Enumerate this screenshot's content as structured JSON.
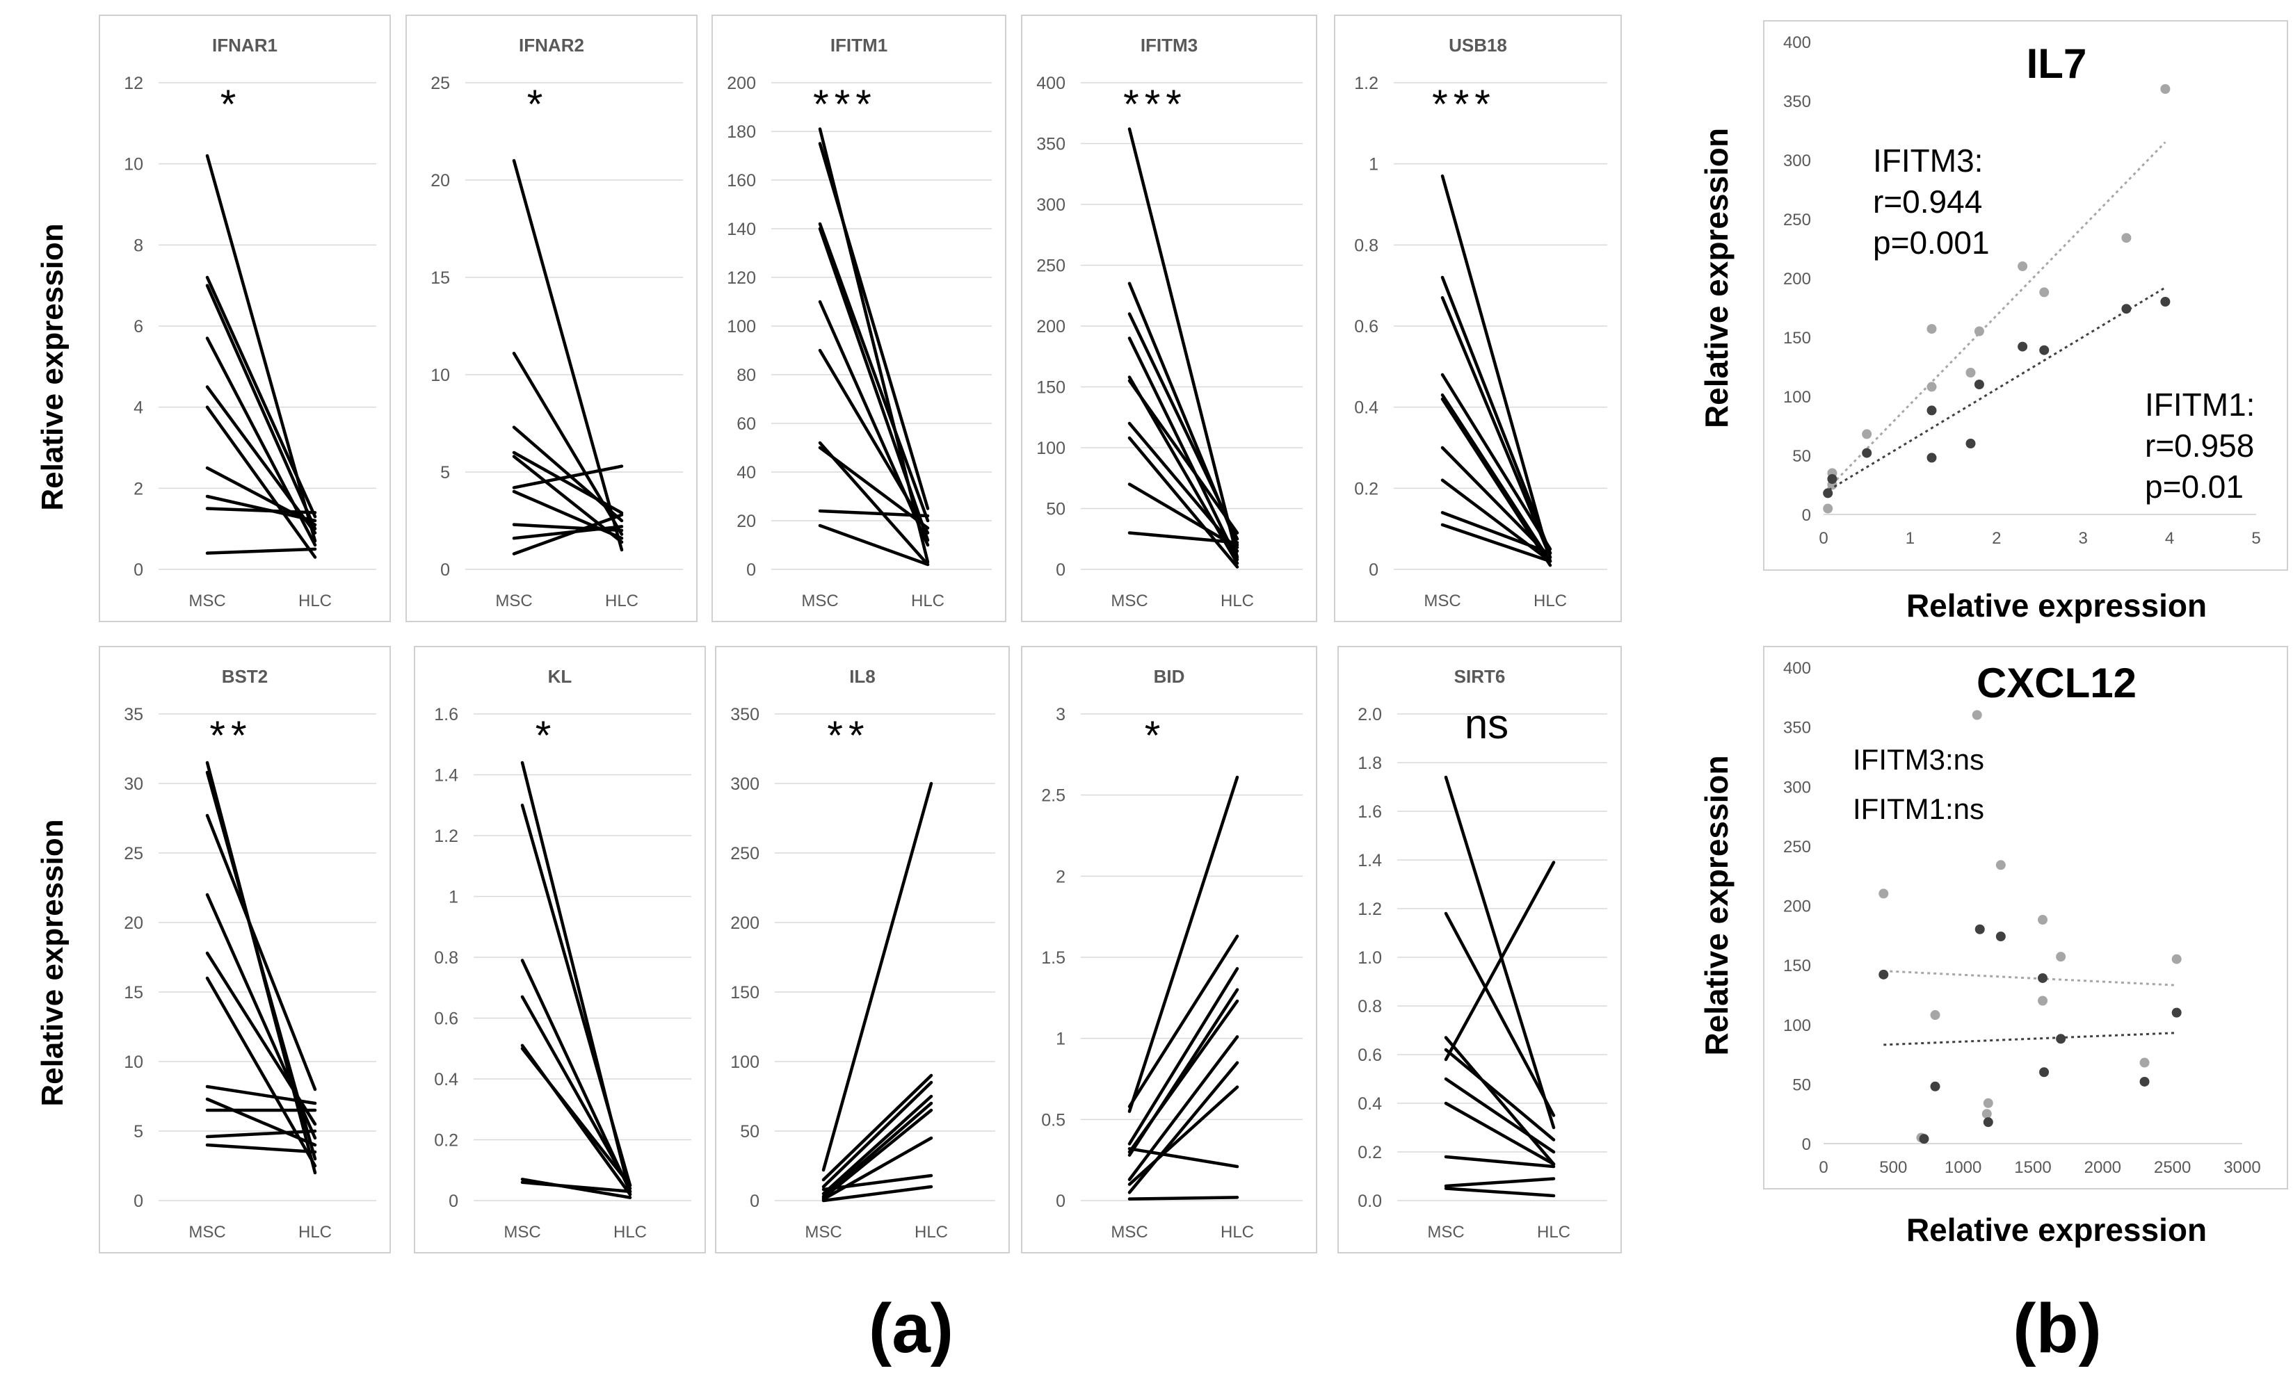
{
  "figure": {
    "ylabel_a": "Relative expression",
    "panel_a_label": "(a)",
    "panel_b_label": "(b)",
    "line_color": "#000000",
    "grid_color": "#d9d9d9",
    "frame_color": "#d0d0d0",
    "tick_color": "#595959",
    "gene_title_color": "#595959",
    "series_light_color": "#a6a6a6",
    "series_dark_color": "#404040"
  },
  "chart_data": [
    {
      "type": "line",
      "title": "IFNAR1",
      "significance": "*",
      "categories": [
        "MSC",
        "HLC"
      ],
      "ylim": [
        0,
        12
      ],
      "yticks": [
        "0",
        "2",
        "4",
        "6",
        "8",
        "10",
        "12"
      ],
      "pairs": [
        [
          10.2,
          0.7
        ],
        [
          7.2,
          1.3
        ],
        [
          7.0,
          1.0
        ],
        [
          5.7,
          0.6
        ],
        [
          4.5,
          0.9
        ],
        [
          4.0,
          0.3
        ],
        [
          2.5,
          1.1
        ],
        [
          1.8,
          1.2
        ],
        [
          1.5,
          1.4
        ],
        [
          0.4,
          0.5
        ]
      ]
    },
    {
      "type": "line",
      "title": "IFNAR2",
      "significance": "*",
      "categories": [
        "MSC",
        "HLC"
      ],
      "ylim": [
        0,
        25
      ],
      "yticks": [
        "0",
        "5",
        "10",
        "15",
        "20",
        "25"
      ],
      "pairs": [
        [
          21.0,
          1.0
        ],
        [
          11.1,
          1.8
        ],
        [
          7.3,
          2.5
        ],
        [
          6.0,
          2.9
        ],
        [
          5.8,
          1.4
        ],
        [
          4.2,
          5.3
        ],
        [
          4.0,
          1.6
        ],
        [
          2.3,
          2.0
        ],
        [
          1.6,
          2.2
        ],
        [
          0.8,
          2.8
        ]
      ]
    },
    {
      "type": "line",
      "title": "IFITM1",
      "significance": "***",
      "categories": [
        "MSC",
        "HLC"
      ],
      "ylim": [
        0,
        200
      ],
      "yticks": [
        "0",
        "20",
        "40",
        "60",
        "80",
        "100",
        "120",
        "140",
        "160",
        "180",
        "200"
      ],
      "pairs": [
        [
          181,
          3
        ],
        [
          175,
          25
        ],
        [
          142,
          20
        ],
        [
          140,
          12
        ],
        [
          110,
          10
        ],
        [
          90,
          15
        ],
        [
          52,
          2
        ],
        [
          50,
          17
        ],
        [
          24,
          22
        ],
        [
          18,
          2
        ]
      ]
    },
    {
      "type": "line",
      "title": "IFITM3",
      "significance": "***",
      "categories": [
        "MSC",
        "HLC"
      ],
      "ylim": [
        0,
        400
      ],
      "yticks": [
        "0",
        "50",
        "100",
        "150",
        "200",
        "250",
        "300",
        "350",
        "400"
      ],
      "pairs": [
        [
          362,
          10
        ],
        [
          235,
          20
        ],
        [
          210,
          25
        ],
        [
          190,
          8
        ],
        [
          158,
          5
        ],
        [
          155,
          30
        ],
        [
          120,
          15
        ],
        [
          108,
          2
        ],
        [
          70,
          18
        ],
        [
          30,
          22
        ]
      ]
    },
    {
      "type": "line",
      "title": "USB18",
      "significance": "***",
      "categories": [
        "MSC",
        "HLC"
      ],
      "ylim": [
        0,
        1.2
      ],
      "yticks": [
        "0",
        "0.2",
        "0.4",
        "0.6",
        "0.8",
        "1",
        "1.2"
      ],
      "pairs": [
        [
          0.97,
          0.02
        ],
        [
          0.72,
          0.04
        ],
        [
          0.67,
          0.03
        ],
        [
          0.48,
          0.05
        ],
        [
          0.43,
          0.02
        ],
        [
          0.42,
          0.01
        ],
        [
          0.3,
          0.03
        ],
        [
          0.22,
          0.02
        ],
        [
          0.14,
          0.04
        ],
        [
          0.11,
          0.02
        ]
      ]
    },
    {
      "type": "line",
      "title": "BST2",
      "significance": "**",
      "categories": [
        "MSC",
        "HLC"
      ],
      "ylim": [
        0,
        35
      ],
      "yticks": [
        "0",
        "5",
        "10",
        "15",
        "20",
        "25",
        "30",
        "35"
      ],
      "pairs": [
        [
          31.5,
          2.0
        ],
        [
          30.8,
          3.0
        ],
        [
          27.7,
          8.0
        ],
        [
          22.0,
          4.5
        ],
        [
          17.8,
          5.5
        ],
        [
          16.0,
          2.5
        ],
        [
          8.2,
          7.0
        ],
        [
          7.3,
          4.0
        ],
        [
          6.5,
          6.5
        ],
        [
          4.6,
          5.0
        ],
        [
          4.0,
          3.5
        ]
      ]
    },
    {
      "type": "line",
      "title": "KL",
      "significance": "*",
      "categories": [
        "MSC",
        "HLC"
      ],
      "ylim": [
        0,
        1.6
      ],
      "yticks": [
        "0",
        "0.2",
        "0.4",
        "0.6",
        "0.8",
        "1",
        "1.2",
        "1.4",
        "1.6"
      ],
      "pairs": [
        [
          1.44,
          0.02
        ],
        [
          1.3,
          0.05
        ],
        [
          0.79,
          0.03
        ],
        [
          0.67,
          0.04
        ],
        [
          0.51,
          0.02
        ],
        [
          0.5,
          0.05
        ],
        [
          0.07,
          0.01
        ],
        [
          0.06,
          0.03
        ]
      ]
    },
    {
      "type": "line",
      "title": "IL8",
      "significance": "**",
      "categories": [
        "MSC",
        "HLC"
      ],
      "ylim": [
        0,
        350
      ],
      "yticks": [
        "0",
        "50",
        "100",
        "150",
        "200",
        "250",
        "300",
        "350"
      ],
      "pairs": [
        [
          22,
          300
        ],
        [
          15,
          90
        ],
        [
          10,
          85
        ],
        [
          5,
          75
        ],
        [
          3,
          70
        ],
        [
          2,
          65
        ],
        [
          1,
          45
        ],
        [
          8,
          18
        ],
        [
          0,
          10
        ]
      ]
    },
    {
      "type": "line",
      "title": "BID",
      "significance": "*",
      "categories": [
        "MSC",
        "HLC"
      ],
      "ylim": [
        0,
        3
      ],
      "yticks": [
        "0",
        "0.5",
        "1",
        "1.5",
        "2",
        "2.5",
        "3"
      ],
      "pairs": [
        [
          0.55,
          2.61
        ],
        [
          0.58,
          1.63
        ],
        [
          0.35,
          1.43
        ],
        [
          0.28,
          1.3
        ],
        [
          0.3,
          1.23
        ],
        [
          0.13,
          1.01
        ],
        [
          0.05,
          0.85
        ],
        [
          0.1,
          0.7
        ],
        [
          0.32,
          0.21
        ],
        [
          0.01,
          0.02
        ]
      ]
    },
    {
      "type": "line",
      "title": "SIRT6",
      "significance": "ns",
      "categories": [
        "MSC",
        "HLC"
      ],
      "ylim": [
        0,
        2
      ],
      "yticks": [
        "0.0",
        "0.2",
        "0.4",
        "0.6",
        "0.8",
        "1.0",
        "1.2",
        "1.4",
        "1.6",
        "1.8",
        "2.0"
      ],
      "pairs": [
        [
          1.74,
          0.3
        ],
        [
          1.18,
          0.35
        ],
        [
          0.67,
          0.15
        ],
        [
          0.62,
          0.25
        ],
        [
          0.58,
          1.39
        ],
        [
          0.5,
          0.2
        ],
        [
          0.4,
          0.15
        ],
        [
          0.18,
          0.14
        ],
        [
          0.06,
          0.09
        ],
        [
          0.05,
          0.02
        ]
      ]
    },
    {
      "type": "scatter",
      "title": "IL7",
      "xlabel": "Relative expression",
      "ylabel": "Relative expression",
      "xlim": [
        0,
        5
      ],
      "ylim": [
        0,
        400
      ],
      "xticks": [
        "0",
        "1",
        "2",
        "3",
        "4",
        "5"
      ],
      "yticks": [
        "0",
        "50",
        "100",
        "150",
        "200",
        "250",
        "300",
        "350",
        "400"
      ],
      "series": [
        {
          "name": "IFITM3",
          "color": "light",
          "points": [
            [
              0.05,
              5
            ],
            [
              0.1,
              35
            ],
            [
              0.1,
              25
            ],
            [
              0.5,
              68
            ],
            [
              1.25,
              157
            ],
            [
              1.25,
              108
            ],
            [
              1.7,
              120
            ],
            [
              1.8,
              155
            ],
            [
              2.3,
              210
            ],
            [
              2.55,
              188
            ],
            [
              3.5,
              234
            ],
            [
              3.95,
              360
            ]
          ],
          "trend": [
            [
              0,
              18
            ],
            [
              3.95,
              315
            ]
          ]
        },
        {
          "name": "IFITM1",
          "color": "dark",
          "points": [
            [
              0.05,
              18
            ],
            [
              0.1,
              30
            ],
            [
              0.5,
              52
            ],
            [
              1.25,
              88
            ],
            [
              1.25,
              48
            ],
            [
              1.7,
              60
            ],
            [
              1.8,
              110
            ],
            [
              2.3,
              142
            ],
            [
              2.55,
              139
            ],
            [
              3.5,
              174
            ],
            [
              3.95,
              180
            ]
          ],
          "trend": [
            [
              0,
              18
            ],
            [
              3.95,
              192
            ]
          ]
        }
      ],
      "annotations": [
        {
          "lines": [
            "IFITM3:",
            "r=0.944",
            "p=0.001"
          ],
          "placement": "upper-left"
        },
        {
          "lines": [
            "IFITM1:",
            "r=0.958",
            "p=0.01"
          ],
          "placement": "lower-right"
        }
      ]
    },
    {
      "type": "scatter",
      "title": "CXCL12",
      "xlabel": "Relative expression",
      "ylabel": "Relative expression",
      "xlim": [
        0,
        3000
      ],
      "ylim": [
        0,
        400
      ],
      "xticks": [
        "0",
        "500",
        "1000",
        "1500",
        "2000",
        "2500",
        "3000"
      ],
      "yticks": [
        "0",
        "50",
        "100",
        "150",
        "200",
        "250",
        "300",
        "350",
        "400"
      ],
      "series": [
        {
          "name": "IFITM3",
          "color": "light",
          "points": [
            [
              1100,
              360
            ],
            [
              1270,
              234
            ],
            [
              430,
              210
            ],
            [
              1570,
              188
            ],
            [
              1700,
              157
            ],
            [
              2530,
              155
            ],
            [
              1570,
              120
            ],
            [
              800,
              108
            ],
            [
              2300,
              68
            ],
            [
              1180,
              34
            ],
            [
              1170,
              25
            ],
            [
              700,
              5
            ]
          ],
          "trend": [
            [
              430,
              145
            ],
            [
              2530,
              133
            ]
          ]
        },
        {
          "name": "IFITM1",
          "color": "dark",
          "points": [
            [
              1120,
              180
            ],
            [
              1270,
              174
            ],
            [
              430,
              142
            ],
            [
              1570,
              139
            ],
            [
              2530,
              110
            ],
            [
              1700,
              88
            ],
            [
              1580,
              60
            ],
            [
              800,
              48
            ],
            [
              2300,
              52
            ],
            [
              1180,
              18
            ],
            [
              720,
              4
            ]
          ],
          "trend": [
            [
              430,
              83
            ],
            [
              2530,
              93
            ]
          ]
        }
      ],
      "annotations": [
        {
          "lines": [
            "IFITM3:ns",
            "IFITM1:ns"
          ],
          "placement": "upper-left"
        }
      ]
    }
  ]
}
